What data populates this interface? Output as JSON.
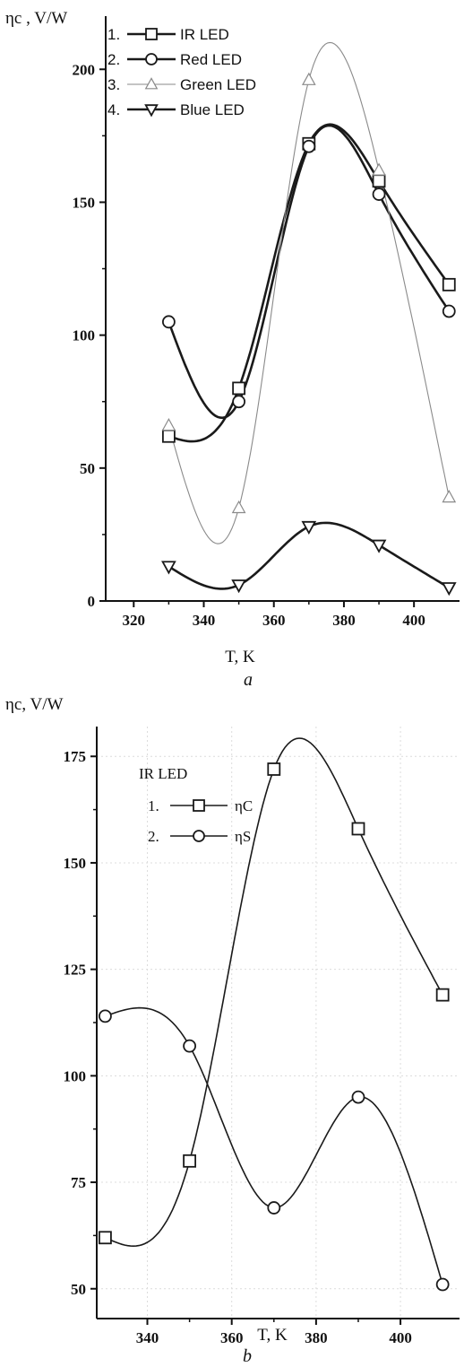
{
  "chart_data": [
    {
      "type": "line",
      "title": "",
      "subplot_label": "a",
      "xlabel": "T, K",
      "ylabel": "ηc , V/W",
      "xlim": [
        312,
        413
      ],
      "ylim": [
        0,
        220
      ],
      "xticks": [
        320,
        340,
        360,
        380,
        400
      ],
      "yticks": [
        0,
        50,
        100,
        150,
        200
      ],
      "grid": false,
      "legend_position": "top-left",
      "x": [
        330,
        350,
        370,
        390,
        410
      ],
      "series": [
        {
          "name": "IR LED",
          "number": "1.",
          "marker": "square",
          "color": "#1a1a1a",
          "values": [
            62,
            80,
            172,
            158,
            119
          ]
        },
        {
          "name": "Red LED",
          "number": "2.",
          "marker": "circle",
          "color": "#1a1a1a",
          "values": [
            105,
            75,
            171,
            153,
            109
          ]
        },
        {
          "name": "Green LED",
          "number": "3.",
          "marker": "triangle-up",
          "color": "#8a8a8a",
          "values": [
            66,
            35,
            196,
            162,
            39
          ]
        },
        {
          "name": "Blue LED",
          "number": "4.",
          "marker": "triangle-down",
          "color": "#1a1a1a",
          "values": [
            13,
            6,
            28,
            21,
            5
          ]
        }
      ]
    },
    {
      "type": "line",
      "title": "",
      "subplot_label": "b",
      "xlabel": "T, K",
      "ylabel": "ηc, V/W",
      "legend_title": "IR LED",
      "xlim": [
        328,
        414
      ],
      "ylim": [
        43,
        182
      ],
      "xticks": [
        340,
        360,
        380,
        400
      ],
      "yticks": [
        50,
        75,
        100,
        125,
        150,
        175
      ],
      "grid": true,
      "legend_position": "top-left",
      "x": [
        330,
        350,
        370,
        390,
        410
      ],
      "series": [
        {
          "name": "ηC",
          "number": "1.",
          "marker": "square",
          "color": "#1a1a1a",
          "values": [
            62,
            80,
            172,
            158,
            119
          ]
        },
        {
          "name": "ηS",
          "number": "2.",
          "marker": "circle",
          "color": "#1a1a1a",
          "values": [
            114,
            107,
            69,
            95,
            51
          ]
        }
      ]
    }
  ]
}
